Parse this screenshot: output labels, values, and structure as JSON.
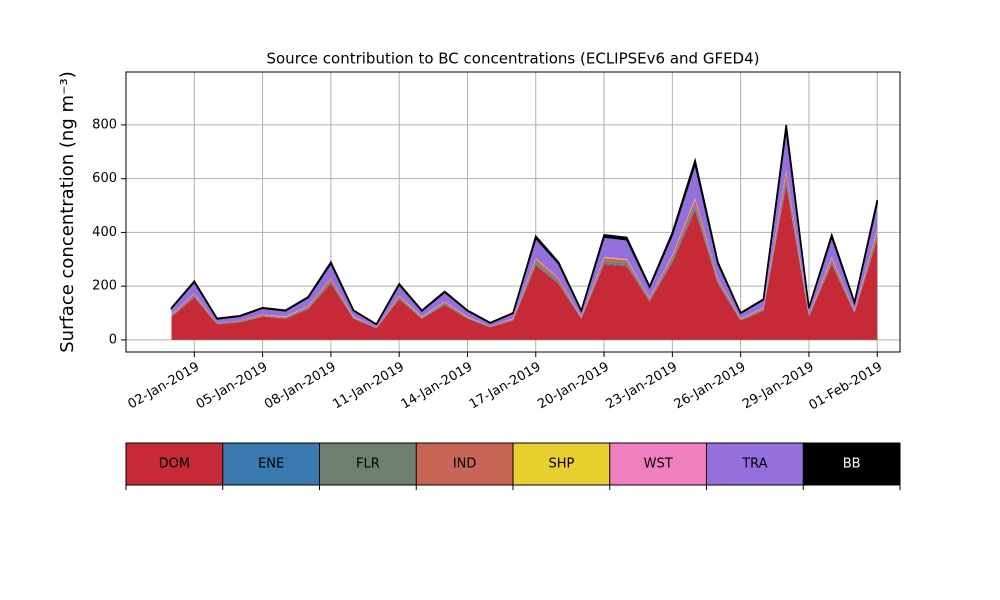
{
  "chart_data": {
    "type": "stacked_area",
    "title": "Source contribution to BC concentrations (ECLIPSEv6 and GFED4)",
    "y_label": "Surface concentration (ng m⁻³)",
    "x": [
      "2019-01-01",
      "2019-01-02",
      "2019-01-03",
      "2019-01-04",
      "2019-01-05",
      "2019-01-06",
      "2019-01-07",
      "2019-01-08",
      "2019-01-09",
      "2019-01-10",
      "2019-01-11",
      "2019-01-12",
      "2019-01-13",
      "2019-01-14",
      "2019-01-15",
      "2019-01-16",
      "2019-01-17",
      "2019-01-18",
      "2019-01-19",
      "2019-01-20",
      "2019-01-21",
      "2019-01-22",
      "2019-01-23",
      "2019-01-24",
      "2019-01-25",
      "2019-01-26",
      "2019-01-27",
      "2019-01-28",
      "2019-01-29",
      "2019-01-30",
      "2019-01-31",
      "2019-02-01"
    ],
    "xlim": [
      "2018-12-30",
      "2019-02-02"
    ],
    "xticks": [
      {
        "value": "2019-01-02",
        "label": "02-Jan-2019"
      },
      {
        "value": "2019-01-05",
        "label": "05-Jan-2019"
      },
      {
        "value": "2019-01-08",
        "label": "08-Jan-2019"
      },
      {
        "value": "2019-01-11",
        "label": "11-Jan-2019"
      },
      {
        "value": "2019-01-14",
        "label": "14-Jan-2019"
      },
      {
        "value": "2019-01-17",
        "label": "17-Jan-2019"
      },
      {
        "value": "2019-01-20",
        "label": "20-Jan-2019"
      },
      {
        "value": "2019-01-23",
        "label": "23-Jan-2019"
      },
      {
        "value": "2019-01-26",
        "label": "26-Jan-2019"
      },
      {
        "value": "2019-01-29",
        "label": "29-Jan-2019"
      },
      {
        "value": "2019-02-01",
        "label": "01-Feb-2019"
      }
    ],
    "ylim": [
      -45,
      997
    ],
    "yticks": [
      0,
      200,
      400,
      600,
      800
    ],
    "grid": true,
    "series": [
      {
        "name": "DOM",
        "color": "#c62a37",
        "values": [
          86,
          158,
          58,
          65,
          86,
          79,
          115,
          209,
          79,
          43,
          151,
          79,
          130,
          79,
          47,
          72,
          277,
          209,
          79,
          281,
          274,
          144,
          288,
          482,
          209,
          72,
          108,
          576,
          86,
          281,
          101,
          374
        ]
      },
      {
        "name": "ENE",
        "color": "#3a78b0",
        "values": [
          1,
          2,
          1,
          1,
          1,
          1,
          2,
          3,
          1,
          1,
          2,
          1,
          2,
          1,
          1,
          1,
          4,
          3,
          1,
          4,
          4,
          2,
          4,
          7,
          3,
          1,
          2,
          8,
          1,
          4,
          1,
          5
        ]
      },
      {
        "name": "FLR",
        "color": "#6e7f6e",
        "values": [
          2,
          4,
          2,
          2,
          2,
          2,
          3,
          6,
          2,
          1,
          4,
          2,
          4,
          2,
          1,
          2,
          8,
          6,
          2,
          8,
          8,
          4,
          8,
          13,
          6,
          2,
          3,
          16,
          2,
          8,
          3,
          10
        ]
      },
      {
        "name": "IND",
        "color": "#c86655",
        "values": [
          4,
          7,
          2,
          3,
          4,
          3,
          5,
          9,
          3,
          2,
          6,
          3,
          5,
          3,
          2,
          3,
          12,
          9,
          3,
          12,
          11,
          6,
          12,
          20,
          9,
          3,
          5,
          24,
          4,
          12,
          4,
          16
        ]
      },
      {
        "name": "SHP",
        "color": "#e8cf30",
        "values": [
          1,
          1,
          0,
          0,
          1,
          1,
          1,
          1,
          1,
          0,
          1,
          1,
          1,
          1,
          0,
          1,
          2,
          1,
          1,
          2,
          2,
          1,
          2,
          3,
          1,
          1,
          1,
          4,
          1,
          2,
          1,
          3
        ]
      },
      {
        "name": "WST",
        "color": "#f07fbf",
        "values": [
          1,
          1,
          0,
          0,
          1,
          1,
          1,
          1,
          1,
          0,
          1,
          1,
          1,
          1,
          0,
          1,
          2,
          1,
          1,
          2,
          2,
          1,
          2,
          3,
          1,
          1,
          1,
          4,
          1,
          2,
          1,
          3
        ]
      },
      {
        "name": "TRA",
        "color": "#9370db",
        "values": [
          23,
          42,
          15,
          17,
          23,
          21,
          30,
          55,
          21,
          11,
          40,
          21,
          34,
          21,
          12,
          19,
          73,
          55,
          21,
          74,
          72,
          38,
          76,
          127,
          55,
          19,
          29,
          152,
          23,
          74,
          27,
          99
        ]
      },
      {
        "name": "BB",
        "color": "#000000",
        "values": [
          2,
          4,
          2,
          2,
          2,
          2,
          3,
          6,
          2,
          1,
          4,
          2,
          4,
          2,
          1,
          2,
          8,
          6,
          2,
          8,
          8,
          4,
          8,
          13,
          6,
          2,
          3,
          16,
          2,
          8,
          3,
          10
        ]
      }
    ]
  }
}
